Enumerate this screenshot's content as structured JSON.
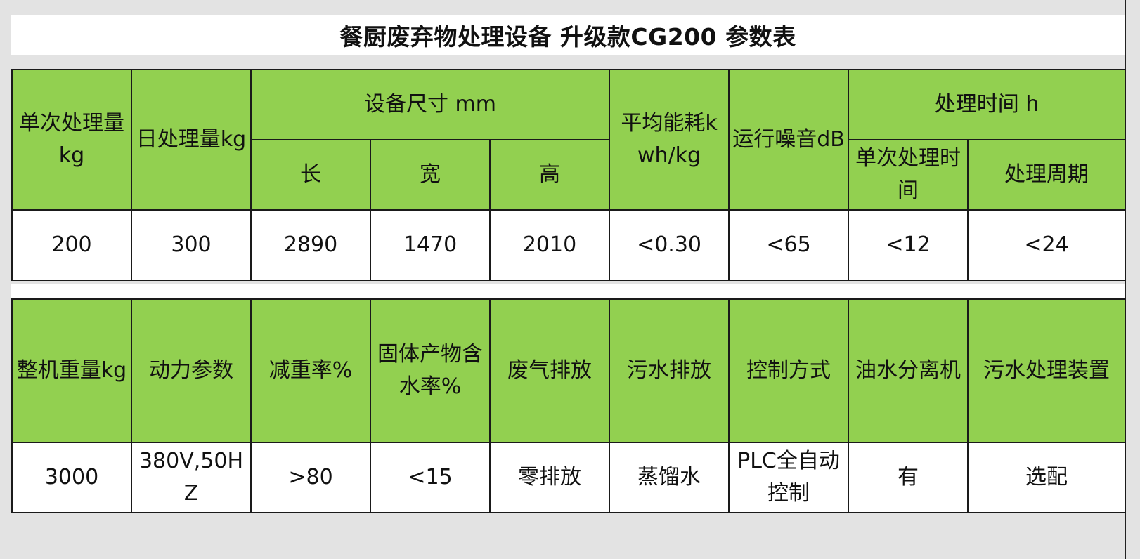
{
  "title": "餐厨废弃物处理设备 升级款CG200 参数表",
  "colors": {
    "header_bg": "#92d050",
    "value_bg": "#ffffff",
    "border": "#1a1a1a"
  },
  "table1": {
    "headers": {
      "single_capacity": "单次处理量kg",
      "daily_capacity": "日处理量kg",
      "dimensions": "设备尺寸 mm",
      "length": "长",
      "width": "宽",
      "height": "高",
      "energy": "平均能耗kwh/kg",
      "noise": "运行噪音dB",
      "time": "处理时间 h",
      "single_time": "单次处理时间",
      "cycle": "处理周期"
    },
    "values": [
      "200",
      "300",
      "2890",
      "1470",
      "2010",
      "<0.30",
      "<65",
      "<12",
      "<24"
    ]
  },
  "table2": {
    "headers": [
      "整机重量kg",
      "动力参数",
      "减重率%",
      "固体产物含水率%",
      "废气排放",
      "污水排放",
      "控制方式",
      "油水分离机",
      "污水处理装置"
    ],
    "values": [
      "3000",
      "380V,50HZ",
      ">80",
      "<15",
      "零排放",
      "蒸馏水",
      "PLC全自动控制",
      "有",
      "选配"
    ]
  }
}
